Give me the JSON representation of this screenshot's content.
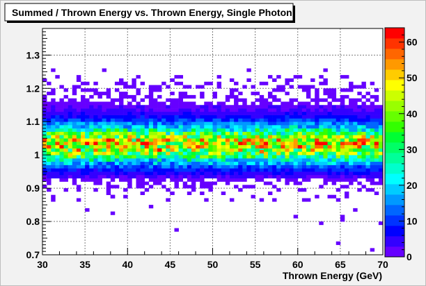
{
  "chart_data": {
    "type": "heatmap",
    "title": "Summed / Thrown Energy vs. Thrown Energy, Single Photon",
    "xlabel": "Thrown Energy (GeV)",
    "ylabel": "",
    "xlim": [
      30,
      70
    ],
    "ylim": [
      0.7,
      1.38
    ],
    "x_ticks": [
      30,
      35,
      40,
      45,
      50,
      55,
      60,
      65,
      70
    ],
    "y_ticks": [
      0.7,
      0.8,
      0.9,
      1,
      1.1,
      1.2,
      1.3
    ],
    "x_tick_labels": [
      "30",
      "35",
      "40",
      "45",
      "50",
      "55",
      "60",
      "65",
      "70"
    ],
    "y_tick_labels": [
      "0.7",
      "0.8",
      "0.9",
      "1",
      "1.1",
      "1.2",
      "1.3"
    ],
    "x_bins": 80,
    "y_bins": 100,
    "z_range": [
      0,
      64
    ],
    "z_ticks": [
      0,
      10,
      20,
      30,
      40,
      50,
      60
    ],
    "z_tick_labels": [
      "0",
      "10",
      "20",
      "30",
      "40",
      "50",
      "60"
    ],
    "color_scale": [
      "#6600ff",
      "#3300ff",
      "#0000ff",
      "#0033ff",
      "#0066ff",
      "#0099ff",
      "#00ccff",
      "#00ffff",
      "#00ffcc",
      "#00ff99",
      "#00ff66",
      "#00ff33",
      "#33ff00",
      "#66ff00",
      "#99ff00",
      "#ccff00",
      "#ffff00",
      "#ffcc00",
      "#ff9900",
      "#ff6600",
      "#ff3300",
      "#ff0000"
    ],
    "distribution": {
      "peak_ratio": 1.03,
      "core_sigma": 0.04,
      "peak_count": 42
    },
    "hot_cells": [
      {
        "x": 43.75,
        "y": 1.015,
        "value": 62
      },
      {
        "x": 55.75,
        "y": 1.01,
        "value": 58
      },
      {
        "x": 62.25,
        "y": 1.025,
        "value": 56
      },
      {
        "x": 33.25,
        "y": 1.0,
        "value": 52
      },
      {
        "x": 47.25,
        "y": 1.03,
        "value": 50
      },
      {
        "x": 58.75,
        "y": 1.035,
        "value": 48
      }
    ],
    "outlier_cells": [
      {
        "x": 31.25,
        "y": 1.255,
        "value": 1
      },
      {
        "x": 37.25,
        "y": 1.255,
        "value": 1
      },
      {
        "x": 45.25,
        "y": 1.225,
        "value": 1
      },
      {
        "x": 50.75,
        "y": 1.215,
        "value": 1
      },
      {
        "x": 54.25,
        "y": 1.255,
        "value": 1
      },
      {
        "x": 56.75,
        "y": 1.235,
        "value": 1
      },
      {
        "x": 59.75,
        "y": 1.235,
        "value": 1
      },
      {
        "x": 63.25,
        "y": 1.255,
        "value": 1
      },
      {
        "x": 65.25,
        "y": 1.235,
        "value": 1
      },
      {
        "x": 32.75,
        "y": 0.895,
        "value": 1
      },
      {
        "x": 34.25,
        "y": 0.895,
        "value": 1
      },
      {
        "x": 38.25,
        "y": 0.905,
        "value": 1
      },
      {
        "x": 39.75,
        "y": 0.895,
        "value": 1
      },
      {
        "x": 44.75,
        "y": 0.895,
        "value": 1
      },
      {
        "x": 48.75,
        "y": 0.905,
        "value": 1
      },
      {
        "x": 52.75,
        "y": 0.905,
        "value": 1
      },
      {
        "x": 56.25,
        "y": 0.915,
        "value": 1
      },
      {
        "x": 60.25,
        "y": 0.895,
        "value": 1
      },
      {
        "x": 64.75,
        "y": 0.895,
        "value": 1
      },
      {
        "x": 65.75,
        "y": 0.885,
        "value": 1
      },
      {
        "x": 68.75,
        "y": 0.895,
        "value": 1
      },
      {
        "x": 31.25,
        "y": 0.865,
        "value": 1
      },
      {
        "x": 38.25,
        "y": 0.875,
        "value": 1
      },
      {
        "x": 55.75,
        "y": 0.865,
        "value": 1
      },
      {
        "x": 42.75,
        "y": 0.845,
        "value": 1
      },
      {
        "x": 35.25,
        "y": 0.835,
        "value": 1
      },
      {
        "x": 38.25,
        "y": 0.825,
        "value": 1
      },
      {
        "x": 66.75,
        "y": 0.835,
        "value": 1
      },
      {
        "x": 59.75,
        "y": 0.815,
        "value": 1
      },
      {
        "x": 65.25,
        "y": 0.815,
        "value": 1
      },
      {
        "x": 65.25,
        "y": 0.805,
        "value": 1
      },
      {
        "x": 62.75,
        "y": 0.795,
        "value": 1
      },
      {
        "x": 69.75,
        "y": 0.795,
        "value": 1
      },
      {
        "x": 45.75,
        "y": 0.775,
        "value": 1
      },
      {
        "x": 64.75,
        "y": 0.735,
        "value": 1
      },
      {
        "x": 68.75,
        "y": 0.715,
        "value": 1
      }
    ]
  }
}
